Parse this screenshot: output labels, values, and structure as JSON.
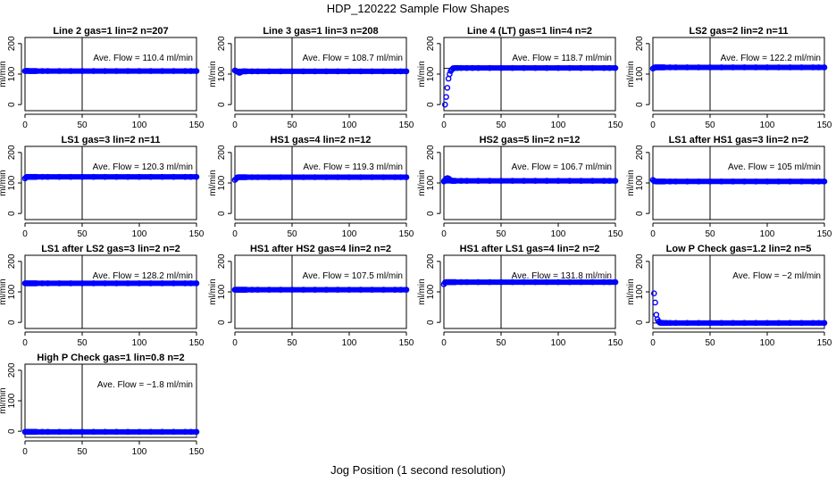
{
  "title": "HDP_120222  Sample Flow Shapes",
  "x_axis_label": "Jog Position (1 second resolution)",
  "y_axis_label": "ml/min",
  "flow_prefix": "Ave. Flow = ",
  "flow_unit": "ml/min",
  "colors": {
    "points": "#0000ff",
    "axes": "#000000",
    "background": "#ffffff"
  },
  "chart_data": [
    {
      "type": "scatter",
      "title": "Line 2 gas=1 lin=2 n=207",
      "flow_label": "110.4",
      "mean": 110.4,
      "xlim": [
        0,
        150
      ],
      "ylim": [
        -20,
        220
      ],
      "xticks": [
        0,
        50,
        100,
        150
      ],
      "yticks": [
        0,
        100,
        200
      ],
      "vline": 50,
      "series": [
        {
          "x": [
            0,
            1,
            2,
            3,
            4,
            5,
            6,
            7,
            8,
            9,
            10,
            15,
            20,
            30,
            40,
            50,
            60,
            70,
            80,
            90,
            100,
            110,
            120,
            130,
            140,
            145,
            150
          ],
          "y": [
            110,
            110,
            111,
            110,
            110,
            110,
            110,
            110,
            110,
            110,
            110,
            110,
            110,
            110,
            110,
            110,
            110,
            110,
            110,
            110,
            110,
            110,
            110,
            110,
            110,
            110,
            110
          ]
        }
      ]
    },
    {
      "type": "scatter",
      "title": "Line 3 gas=1 lin=3 n=208",
      "flow_label": "108.7",
      "mean": 108.7,
      "xlim": [
        0,
        150
      ],
      "ylim": [
        -20,
        220
      ],
      "xticks": [
        0,
        50,
        100,
        150
      ],
      "yticks": [
        0,
        100,
        200
      ],
      "vline": 50,
      "series": [
        {
          "x": [
            0,
            1,
            2,
            3,
            4,
            5,
            6,
            7,
            8,
            9,
            10,
            15,
            20,
            30,
            40,
            50,
            60,
            70,
            80,
            90,
            100,
            110,
            120,
            130,
            140,
            145,
            150
          ],
          "y": [
            112,
            110,
            108,
            107,
            104,
            106,
            108,
            109,
            109,
            109,
            109,
            109,
            109,
            109,
            109,
            109,
            109,
            109,
            109,
            109,
            109,
            109,
            109,
            109,
            109,
            109,
            109
          ]
        }
      ]
    },
    {
      "type": "scatter",
      "title": "Line 4 (LT) gas=1 lin=4 n=2",
      "flow_label": "118.7",
      "mean": 118.7,
      "xlim": [
        0,
        150
      ],
      "ylim": [
        -20,
        220
      ],
      "xticks": [
        0,
        50,
        100,
        150
      ],
      "yticks": [
        0,
        100,
        200
      ],
      "vline": 50,
      "series": [
        {
          "x": [
            1,
            2,
            3,
            4,
            5,
            6,
            7,
            8,
            10,
            12,
            15,
            20,
            25,
            30,
            40,
            50,
            60,
            70,
            80,
            90,
            100,
            110,
            120,
            130,
            140,
            145,
            150
          ],
          "y": [
            0,
            25,
            55,
            85,
            100,
            110,
            115,
            118,
            120,
            120,
            120,
            120,
            120,
            120,
            120,
            120,
            120,
            120,
            120,
            120,
            120,
            120,
            120,
            120,
            120,
            120,
            120
          ]
        }
      ]
    },
    {
      "type": "scatter",
      "title": "LS2 gas=2 lin=2 n=11",
      "flow_label": "122.2",
      "mean": 122.2,
      "xlim": [
        0,
        150
      ],
      "ylim": [
        -20,
        220
      ],
      "xticks": [
        0,
        50,
        100,
        150
      ],
      "yticks": [
        0,
        100,
        200
      ],
      "vline": 50,
      "series": [
        {
          "x": [
            0,
            1,
            2,
            3,
            4,
            5,
            6,
            7,
            8,
            9,
            10,
            15,
            20,
            30,
            40,
            50,
            60,
            70,
            80,
            90,
            100,
            110,
            120,
            130,
            140,
            145,
            150
          ],
          "y": [
            118,
            120,
            122,
            122,
            122,
            122,
            122,
            122,
            122,
            122,
            122,
            122,
            122,
            122,
            122,
            122,
            122,
            122,
            122,
            122,
            122,
            122,
            122,
            122,
            122,
            122,
            122
          ]
        }
      ]
    },
    {
      "type": "scatter",
      "title": "LS1 gas=3 lin=2 n=11",
      "flow_label": "120.3",
      "mean": 120.3,
      "xlim": [
        0,
        150
      ],
      "ylim": [
        -20,
        220
      ],
      "xticks": [
        0,
        50,
        100,
        150
      ],
      "yticks": [
        0,
        100,
        200
      ],
      "vline": 50,
      "series": [
        {
          "x": [
            0,
            1,
            2,
            3,
            4,
            5,
            6,
            7,
            8,
            9,
            10,
            15,
            20,
            30,
            40,
            50,
            60,
            70,
            80,
            90,
            100,
            110,
            120,
            130,
            140,
            145,
            150
          ],
          "y": [
            115,
            118,
            120,
            120,
            120,
            120,
            120,
            120,
            120,
            120,
            120,
            120,
            120,
            120,
            120,
            120,
            120,
            120,
            120,
            120,
            120,
            120,
            120,
            120,
            120,
            120,
            120
          ]
        }
      ]
    },
    {
      "type": "scatter",
      "title": "HS1 gas=4 lin=2 n=12",
      "flow_label": "119.3",
      "mean": 119.3,
      "xlim": [
        0,
        150
      ],
      "ylim": [
        -20,
        220
      ],
      "xticks": [
        0,
        50,
        100,
        150
      ],
      "yticks": [
        0,
        100,
        200
      ],
      "vline": 50,
      "series": [
        {
          "x": [
            0,
            1,
            2,
            3,
            4,
            5,
            6,
            7,
            8,
            9,
            10,
            15,
            20,
            30,
            40,
            50,
            60,
            70,
            80,
            90,
            100,
            110,
            120,
            130,
            140,
            145,
            150
          ],
          "y": [
            110,
            114,
            117,
            119,
            119,
            119,
            119,
            119,
            119,
            119,
            119,
            119,
            119,
            119,
            119,
            119,
            119,
            119,
            119,
            119,
            119,
            119,
            119,
            119,
            119,
            119,
            119
          ]
        }
      ]
    },
    {
      "type": "scatter",
      "title": "HS2 gas=5 lin=2 n=12",
      "flow_label": "106.7",
      "mean": 106.7,
      "xlim": [
        0,
        150
      ],
      "ylim": [
        -20,
        220
      ],
      "xticks": [
        0,
        50,
        100,
        150
      ],
      "yticks": [
        0,
        100,
        200
      ],
      "vline": 50,
      "series": [
        {
          "x": [
            0,
            1,
            2,
            3,
            4,
            5,
            6,
            7,
            8,
            9,
            10,
            15,
            20,
            30,
            40,
            50,
            60,
            70,
            80,
            90,
            100,
            110,
            120,
            130,
            140,
            145,
            150
          ],
          "y": [
            105,
            110,
            114,
            116,
            115,
            112,
            109,
            107,
            107,
            107,
            107,
            107,
            107,
            107,
            107,
            107,
            107,
            107,
            107,
            107,
            107,
            107,
            107,
            107,
            107,
            107,
            107
          ]
        }
      ]
    },
    {
      "type": "scatter",
      "title": "LS1 after HS1 gas=3 lin=2 n=2",
      "flow_label": "105",
      "mean": 105,
      "xlim": [
        0,
        150
      ],
      "ylim": [
        -20,
        220
      ],
      "xticks": [
        0,
        50,
        100,
        150
      ],
      "yticks": [
        0,
        100,
        200
      ],
      "vline": 50,
      "series": [
        {
          "x": [
            0,
            1,
            2,
            3,
            4,
            5,
            6,
            7,
            8,
            9,
            10,
            15,
            20,
            30,
            40,
            50,
            60,
            70,
            80,
            90,
            100,
            110,
            120,
            130,
            140,
            145,
            150
          ],
          "y": [
            110,
            107,
            106,
            105,
            105,
            105,
            105,
            105,
            105,
            105,
            105,
            105,
            105,
            105,
            105,
            105,
            105,
            105,
            105,
            105,
            105,
            105,
            105,
            105,
            105,
            105,
            105
          ]
        }
      ]
    },
    {
      "type": "scatter",
      "title": "LS1 after LS2 gas=3 lin=2 n=2",
      "flow_label": "128.2",
      "mean": 128.2,
      "xlim": [
        0,
        150
      ],
      "ylim": [
        -20,
        220
      ],
      "xticks": [
        0,
        50,
        100,
        150
      ],
      "yticks": [
        0,
        100,
        200
      ],
      "vline": 50,
      "series": [
        {
          "x": [
            0,
            1,
            2,
            3,
            4,
            5,
            6,
            7,
            8,
            9,
            10,
            15,
            20,
            30,
            40,
            50,
            60,
            70,
            80,
            90,
            100,
            110,
            120,
            130,
            140,
            145,
            150
          ],
          "y": [
            128,
            128,
            128,
            128,
            128,
            128,
            128,
            128,
            128,
            128,
            128,
            128,
            128,
            128,
            128,
            128,
            128,
            128,
            128,
            128,
            128,
            128,
            128,
            128,
            128,
            128,
            128
          ]
        }
      ]
    },
    {
      "type": "scatter",
      "title": "HS1 after HS2 gas=4 lin=2 n=2",
      "flow_label": "107.5",
      "mean": 107.5,
      "xlim": [
        0,
        150
      ],
      "ylim": [
        -20,
        220
      ],
      "xticks": [
        0,
        50,
        100,
        150
      ],
      "yticks": [
        0,
        100,
        200
      ],
      "vline": 50,
      "series": [
        {
          "x": [
            0,
            1,
            2,
            3,
            4,
            5,
            6,
            7,
            8,
            9,
            10,
            15,
            20,
            30,
            40,
            50,
            60,
            70,
            80,
            90,
            100,
            110,
            120,
            130,
            140,
            145,
            150
          ],
          "y": [
            107,
            107,
            107,
            107,
            107,
            107,
            107,
            107,
            107,
            107,
            107,
            107,
            107,
            107,
            107,
            107,
            107,
            107,
            107,
            107,
            107,
            107,
            107,
            107,
            107,
            107,
            107
          ]
        }
      ]
    },
    {
      "type": "scatter",
      "title": "HS1 after LS1 gas=4 lin=2 n=2",
      "flow_label": "131.8",
      "mean": 131.8,
      "xlim": [
        0,
        150
      ],
      "ylim": [
        -20,
        220
      ],
      "xticks": [
        0,
        50,
        100,
        150
      ],
      "yticks": [
        0,
        100,
        200
      ],
      "vline": 50,
      "series": [
        {
          "x": [
            0,
            1,
            2,
            3,
            4,
            5,
            6,
            7,
            8,
            9,
            10,
            15,
            20,
            30,
            40,
            50,
            60,
            70,
            80,
            90,
            100,
            110,
            120,
            130,
            140,
            145,
            150
          ],
          "y": [
            125,
            130,
            132,
            132,
            132,
            132,
            132,
            132,
            132,
            132,
            132,
            132,
            132,
            132,
            132,
            132,
            132,
            132,
            132,
            132,
            132,
            132,
            132,
            132,
            132,
            132,
            132
          ]
        }
      ]
    },
    {
      "type": "scatter",
      "title": "Low P Check gas=1.2 lin=2 n=5",
      "flow_label": "−2",
      "mean": -2,
      "xlim": [
        0,
        150
      ],
      "ylim": [
        -20,
        220
      ],
      "xticks": [
        0,
        50,
        100,
        150
      ],
      "yticks": [
        0,
        100,
        200
      ],
      "vline": 50,
      "series": [
        {
          "x": [
            1,
            2,
            3,
            4,
            5,
            6,
            7,
            8,
            9,
            10,
            12,
            15,
            20,
            30,
            40,
            50,
            60,
            70,
            80,
            90,
            100,
            110,
            120,
            130,
            140,
            145,
            150
          ],
          "y": [
            95,
            65,
            25,
            10,
            3,
            0,
            -1,
            -2,
            -2,
            -2,
            -2,
            -2,
            -2,
            -2,
            -2,
            -2,
            -2,
            -2,
            -2,
            -2,
            -2,
            -2,
            -2,
            -2,
            -2,
            -2,
            -2
          ]
        }
      ]
    },
    {
      "type": "scatter",
      "title": "High P Check gas=1 lin=0.8 n=2",
      "flow_label": "−1.8",
      "mean": -1.8,
      "xlim": [
        0,
        150
      ],
      "ylim": [
        -20,
        220
      ],
      "xticks": [
        0,
        50,
        100,
        150
      ],
      "yticks": [
        0,
        100,
        200
      ],
      "vline": 50,
      "series": [
        {
          "x": [
            0,
            1,
            2,
            3,
            4,
            5,
            6,
            7,
            8,
            9,
            10,
            15,
            20,
            30,
            40,
            50,
            60,
            70,
            80,
            90,
            100,
            110,
            120,
            130,
            140,
            145,
            150
          ],
          "y": [
            -2,
            -2,
            -2,
            -2,
            -2,
            -2,
            -2,
            -2,
            -2,
            -2,
            -2,
            -2,
            -2,
            -2,
            -2,
            -2,
            -2,
            -2,
            -2,
            -2,
            -2,
            -2,
            -2,
            -2,
            -2,
            -2,
            -2
          ]
        }
      ]
    }
  ]
}
